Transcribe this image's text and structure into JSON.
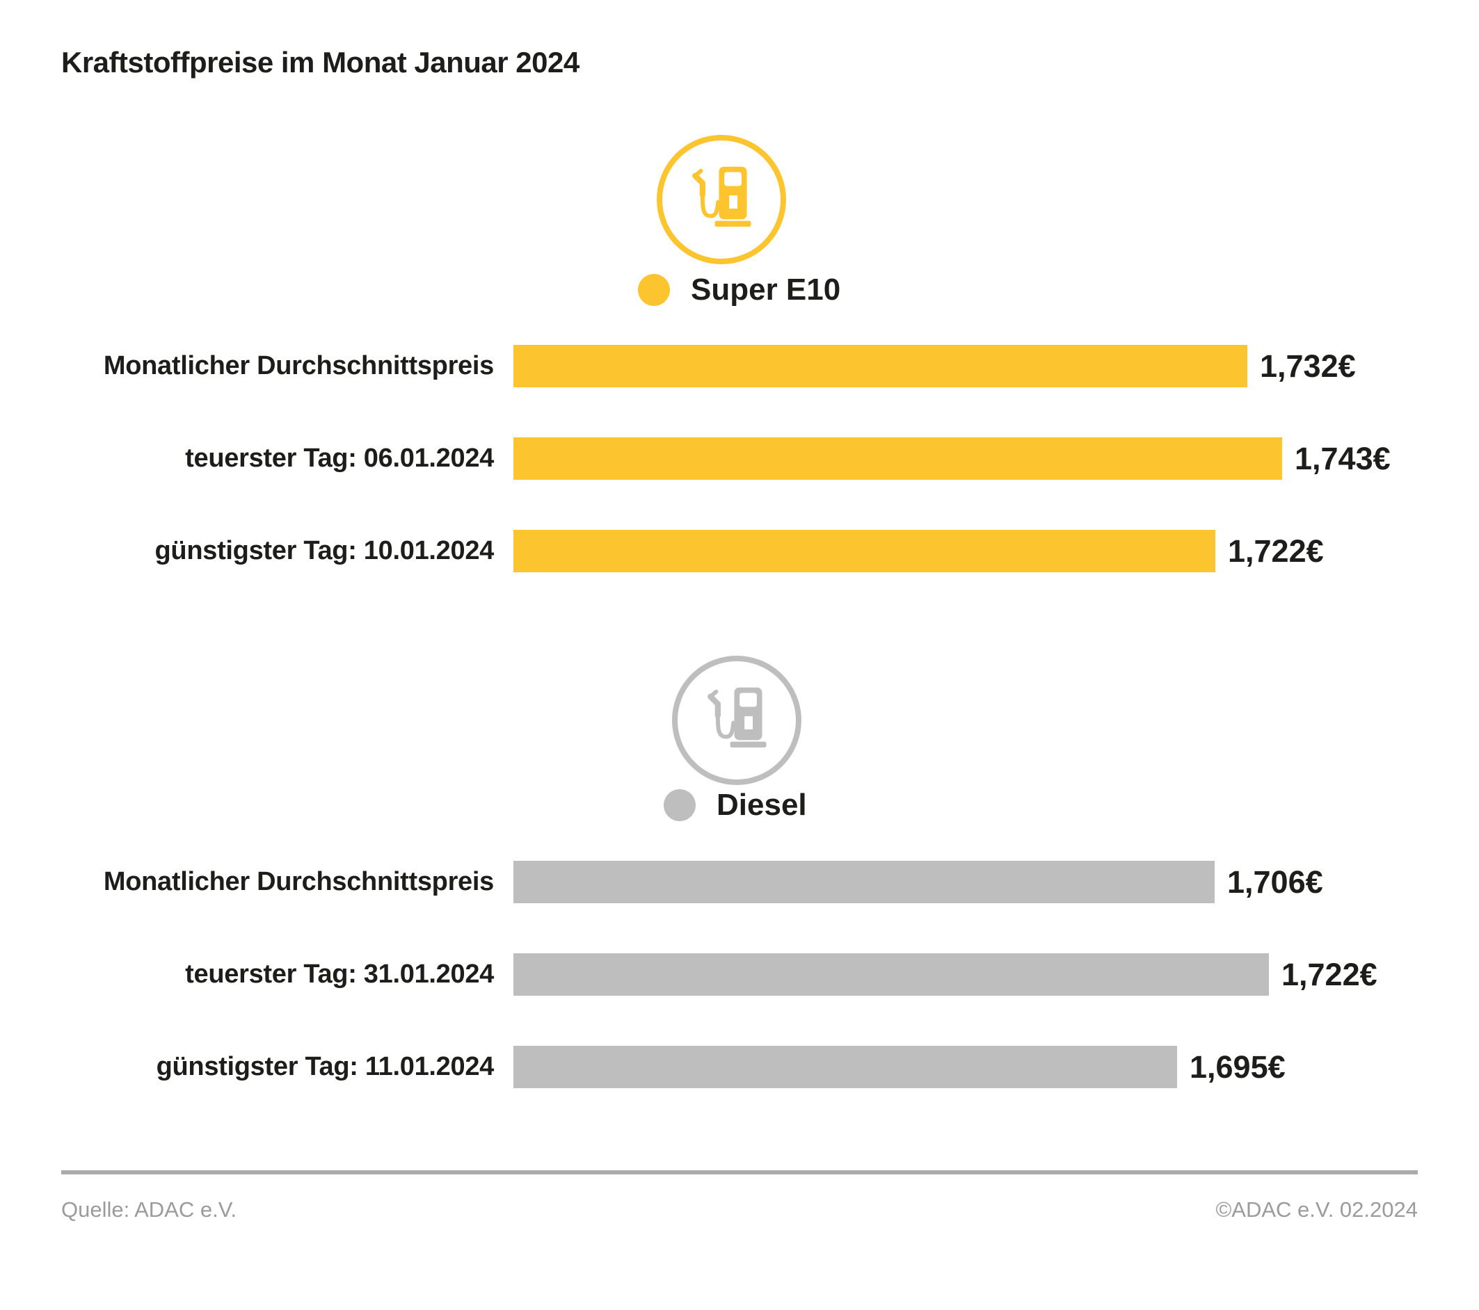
{
  "title": "Kraftstoffpreise im Monat Januar 2024",
  "colors": {
    "super_e10": "#FCC52F",
    "diesel": "#BEBEBE",
    "text": "#1D1D1B",
    "footer_text": "#9B9B9B",
    "divider": "#ABABAB"
  },
  "chart_data": {
    "type": "bar",
    "orientation": "horizontal",
    "title": "Kraftstoffpreise im Monat Januar 2024",
    "axis_min_euro": 1.5,
    "grid": false,
    "groups": [
      {
        "name": "Super E10",
        "color": "#FCC52F",
        "icon": "fuel-pump-icon",
        "rows": [
          {
            "label": "Monatlicher Durchschnittspreis",
            "value": 1.732,
            "value_label": "1,732€"
          },
          {
            "label": "teuerster Tag: 06.01.2024",
            "value": 1.743,
            "value_label": "1,743€"
          },
          {
            "label": "günstigster Tag: 10.01.2024",
            "value": 1.722,
            "value_label": "1,722€"
          }
        ]
      },
      {
        "name": "Diesel",
        "color": "#BEBEBE",
        "icon": "fuel-pump-icon",
        "rows": [
          {
            "label": "Monatlicher Durchschnittspreis",
            "value": 1.706,
            "value_label": "1,706€"
          },
          {
            "label": "teuerster Tag: 31.01.2024",
            "value": 1.722,
            "value_label": "1,722€"
          },
          {
            "label": "günstigster Tag: 11.01.2024",
            "value": 1.695,
            "value_label": "1,695€"
          }
        ]
      }
    ]
  },
  "footer": {
    "source": "Quelle: ADAC e.V.",
    "copyright": "©ADAC e.V. 02.2024"
  }
}
